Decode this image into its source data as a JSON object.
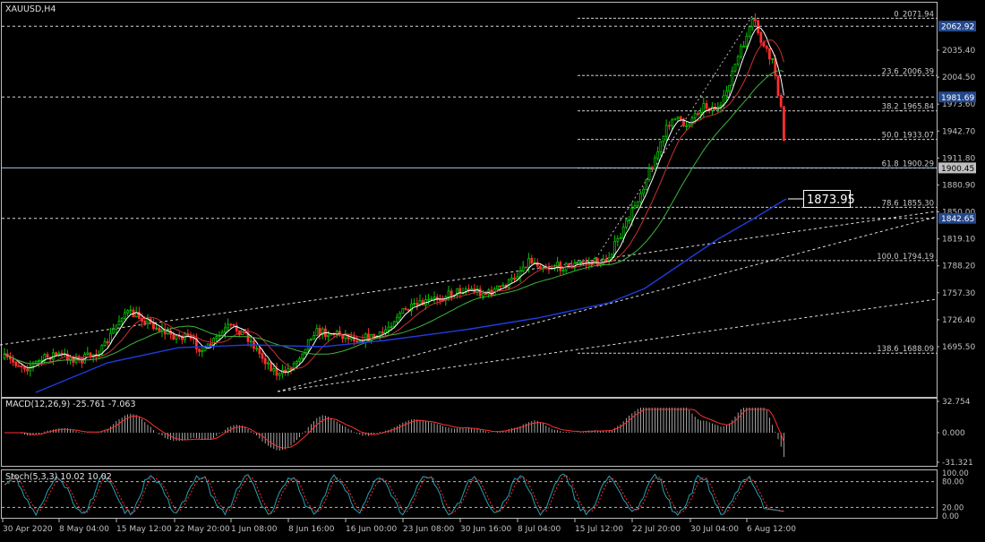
{
  "main_chart": {
    "symbol_label": "XAUUSD,H4",
    "price_axis": [
      "2035.40",
      "2004.50",
      "1973.60",
      "1942.70",
      "1911.80",
      "1880.90",
      "1850.00",
      "1819.10",
      "1788.20",
      "1757.30",
      "1726.40",
      "1695.50"
    ],
    "price_tags": [
      {
        "value": 2062.92,
        "label": "2062.92",
        "style": "highlight"
      },
      {
        "value": 1981.69,
        "label": "1981.69",
        "style": "highlight"
      },
      {
        "value": 1900.45,
        "label": "1900.45",
        "style": "current"
      },
      {
        "value": 1842.65,
        "label": "1842.65",
        "style": "highlight"
      }
    ],
    "current_price_callout": "1873.95",
    "fibonacci_levels": [
      {
        "label": "0_2071.94",
        "price": 2071.94
      },
      {
        "label": "23.6_2006.39",
        "price": 2006.39
      },
      {
        "label": "38.2_1965.84",
        "price": 1965.84
      },
      {
        "label": "50.0_1933.07",
        "price": 1933.07
      },
      {
        "label": "61.8_1900.29",
        "price": 1900.29
      },
      {
        "label": "78.6_1855.30",
        "price": 1855.3
      },
      {
        "label": "100.0_1794.19",
        "price": 1794.19
      },
      {
        "label": "138.6_1688.09",
        "price": 1688.09
      }
    ],
    "colors": {
      "bull_candle": "#00c800",
      "bear_candle": "#ff3030",
      "ma_fast": "#ffffff",
      "ma_mid": "#c83232",
      "ma_slow": "#3cb43c",
      "ma_long": "#1e3cdc",
      "grid_dash": "#c8c8c8",
      "axis_text": "#c0c0c0"
    }
  },
  "macd_panel": {
    "label": "MACD(12,26,9) -25.761 -7.063",
    "axis": [
      "32.754",
      "0.000",
      "-31.321"
    ]
  },
  "stoch_panel": {
    "label": "Stoch(5,3,3) 10.02 10.02",
    "axis": [
      "100.00",
      "80.00",
      "20.00",
      "0.00"
    ]
  },
  "time_axis": [
    "30 Apr 2020",
    "8 May 04:00",
    "15 May 12:00",
    "22 May 20:00",
    "1 Jun 08:00",
    "8 Jun 16:00",
    "16 Jun 00:00",
    "23 Jun 08:00",
    "30 Jun 16:00",
    "8 Jul 04:00",
    "15 Jul 12:00",
    "22 Jul 20:00",
    "30 Jul 04:00",
    "6 Aug 12:00"
  ]
}
